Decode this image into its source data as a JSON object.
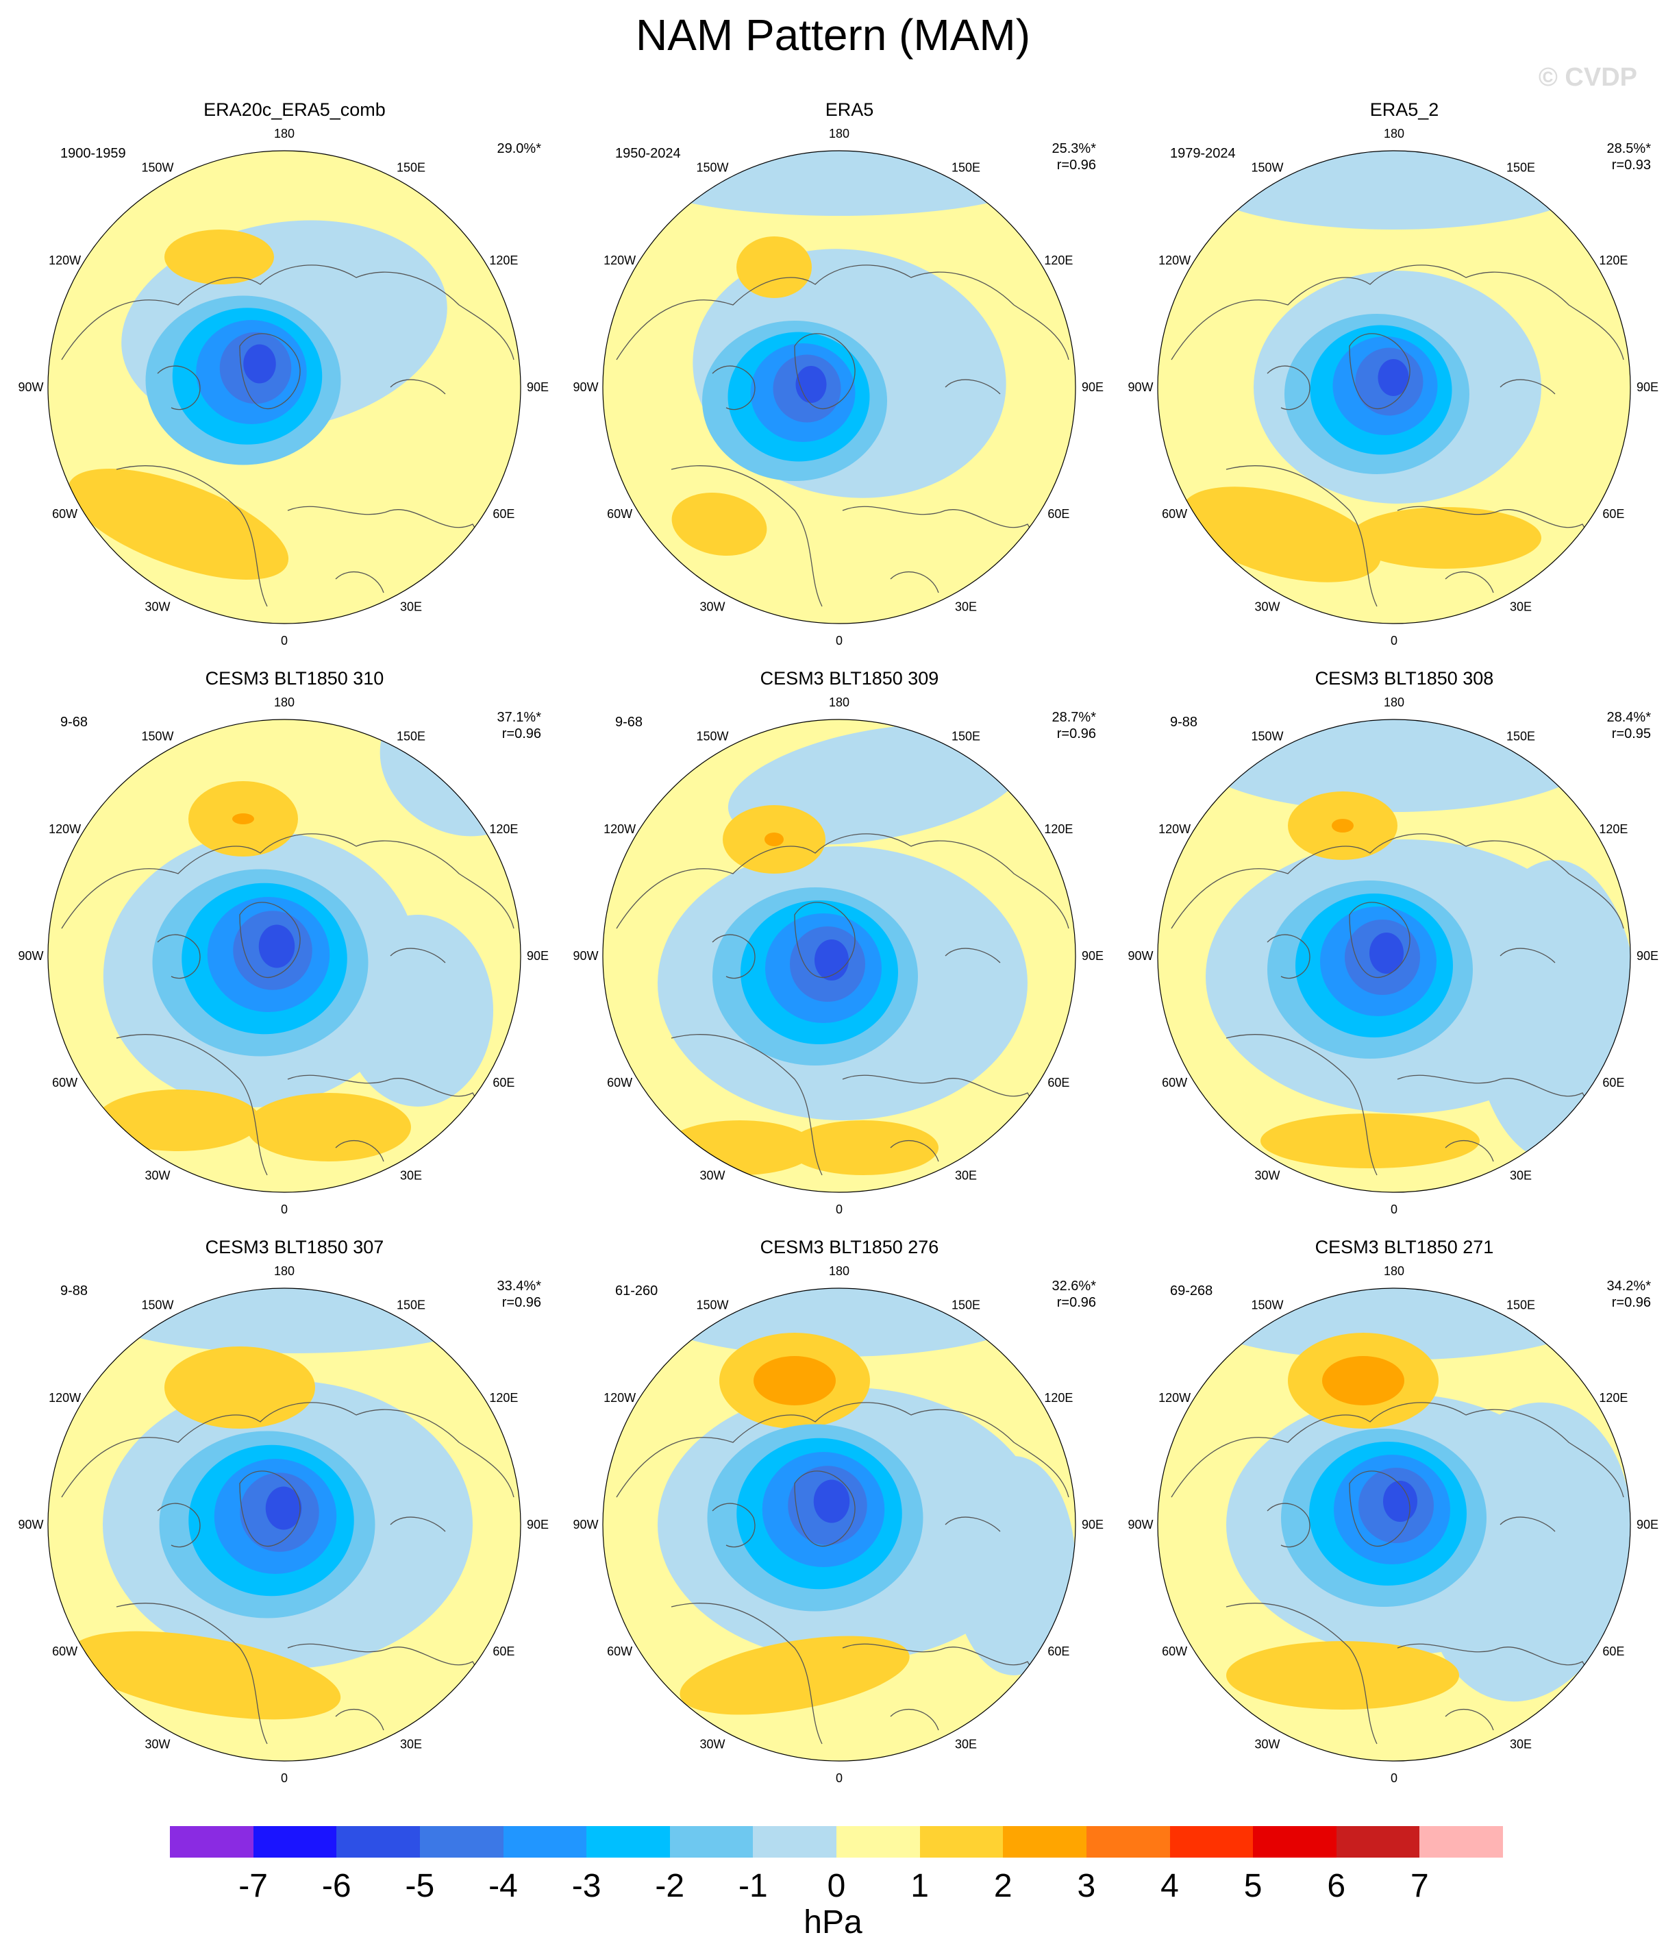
{
  "title": "NAM Pattern (MAM)",
  "watermark": "© CVDP",
  "longitude_labels": [
    "180",
    "150E",
    "120E",
    "90E",
    "60E",
    "30E",
    "0",
    "30W",
    "60W",
    "90W",
    "120W",
    "150W"
  ],
  "panels": [
    {
      "title": "ERA20c_ERA5_comb",
      "period": "1900-1959",
      "pct": "29.0%*",
      "r": ""
    },
    {
      "title": "ERA5",
      "period": "1950-2024",
      "pct": "25.3%*",
      "r": "r=0.96"
    },
    {
      "title": "ERA5_2",
      "period": "1979-2024",
      "pct": "28.5%*",
      "r": "r=0.93"
    },
    {
      "title": "CESM3 BLT1850 310",
      "period": "9-68",
      "pct": "37.1%*",
      "r": "r=0.96"
    },
    {
      "title": "CESM3 BLT1850 309",
      "period": "9-68",
      "pct": "28.7%*",
      "r": "r=0.96"
    },
    {
      "title": "CESM3 BLT1850 308",
      "period": "9-88",
      "pct": "28.4%*",
      "r": "r=0.95"
    },
    {
      "title": "CESM3 BLT1850 307",
      "period": "9-88",
      "pct": "33.4%*",
      "r": "r=0.96"
    },
    {
      "title": "CESM3 BLT1850 276",
      "period": "61-260",
      "pct": "32.6%*",
      "r": "r=0.96"
    },
    {
      "title": "CESM3 BLT1850 271",
      "period": "69-268",
      "pct": "34.2%*",
      "r": "r=0.96"
    }
  ],
  "colorbar": {
    "ticks": [
      "-7",
      "-6",
      "-5",
      "-4",
      "-3",
      "-2",
      "-1",
      "0",
      "1",
      "2",
      "3",
      "4",
      "5",
      "6",
      "7"
    ],
    "colors": [
      "#8a2be2",
      "#1a14ff",
      "#2d50e6",
      "#3c78e6",
      "#2196ff",
      "#00bfff",
      "#6ec8f0",
      "#b4dcf0",
      "#fffa9f",
      "#ffd232",
      "#ffa500",
      "#ff7814",
      "#ff3200",
      "#e60000",
      "#c81e1e",
      "#ffb4b4"
    ],
    "units": "hPa"
  }
}
